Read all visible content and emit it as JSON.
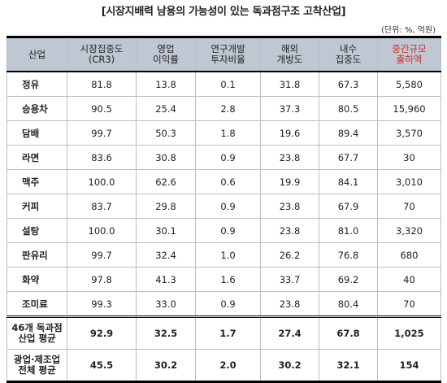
{
  "title": "[시장지배력 남용의 가능성이 있는 독과점구조 고착산업]",
  "unit": "(단위: %, 억원)",
  "headers": [
    {
      "l1": "산업",
      "l2": ""
    },
    {
      "l1": "시장집중도",
      "l2": "(CR3)"
    },
    {
      "l1": "영업",
      "l2": "이익률"
    },
    {
      "l1": "연구개발",
      "l2": "투자비율"
    },
    {
      "l1": "해외",
      "l2": "개방도"
    },
    {
      "l1": "내수",
      "l2": "집중도"
    },
    {
      "l1": "중간규모",
      "l2": "출하액"
    }
  ],
  "rows": [
    {
      "name": "정유",
      "cr3": "81.8",
      "margin": "13.8",
      "rnd": "0.1",
      "open": "31.8",
      "domestic": "67.3",
      "shipment": "5,580"
    },
    {
      "name": "승용차",
      "cr3": "90.5",
      "margin": "25.4",
      "rnd": "2.8",
      "open": "37.3",
      "domestic": "80.5",
      "shipment": "15,960"
    },
    {
      "name": "담배",
      "cr3": "99.7",
      "margin": "50.3",
      "rnd": "1.8",
      "open": "19.6",
      "domestic": "89.4",
      "shipment": "3,570"
    },
    {
      "name": "라면",
      "cr3": "83.6",
      "margin": "30.8",
      "rnd": "0.9",
      "open": "23.8",
      "domestic": "67.7",
      "shipment": "30"
    },
    {
      "name": "맥주",
      "cr3": "100.0",
      "margin": "62.6",
      "rnd": "0.6",
      "open": "19.9",
      "domestic": "84.1",
      "shipment": "3,010"
    },
    {
      "name": "커피",
      "cr3": "83.7",
      "margin": "29.8",
      "rnd": "0.9",
      "open": "23.8",
      "domestic": "67.9",
      "shipment": "70"
    },
    {
      "name": "설탕",
      "cr3": "100.0",
      "margin": "30.1",
      "rnd": "0.9",
      "open": "23.8",
      "domestic": "81.0",
      "shipment": "3,320"
    },
    {
      "name": "판유리",
      "cr3": "99.7",
      "margin": "32.4",
      "rnd": "1.0",
      "open": "26.2",
      "domestic": "76.8",
      "shipment": "680"
    },
    {
      "name": "화약",
      "cr3": "97.8",
      "margin": "41.3",
      "rnd": "1.6",
      "open": "33.7",
      "domestic": "69.2",
      "shipment": "40"
    },
    {
      "name": "조미료",
      "cr3": "99.3",
      "margin": "33.0",
      "rnd": "0.9",
      "open": "23.8",
      "domestic": "80.4",
      "shipment": "70"
    }
  ],
  "summary": [
    {
      "l1": "46개 독과점",
      "l2": "산업 평균",
      "cr3": "92.9",
      "margin": "32.5",
      "rnd": "1.7",
      "open": "27.4",
      "domestic": "67.8",
      "shipment": "1,025"
    },
    {
      "l1": "광업·제조업",
      "l2": "전체 평균",
      "cr3": "45.5",
      "margin": "30.2",
      "rnd": "2.0",
      "open": "30.2",
      "domestic": "32.1",
      "shipment": "154"
    }
  ]
}
